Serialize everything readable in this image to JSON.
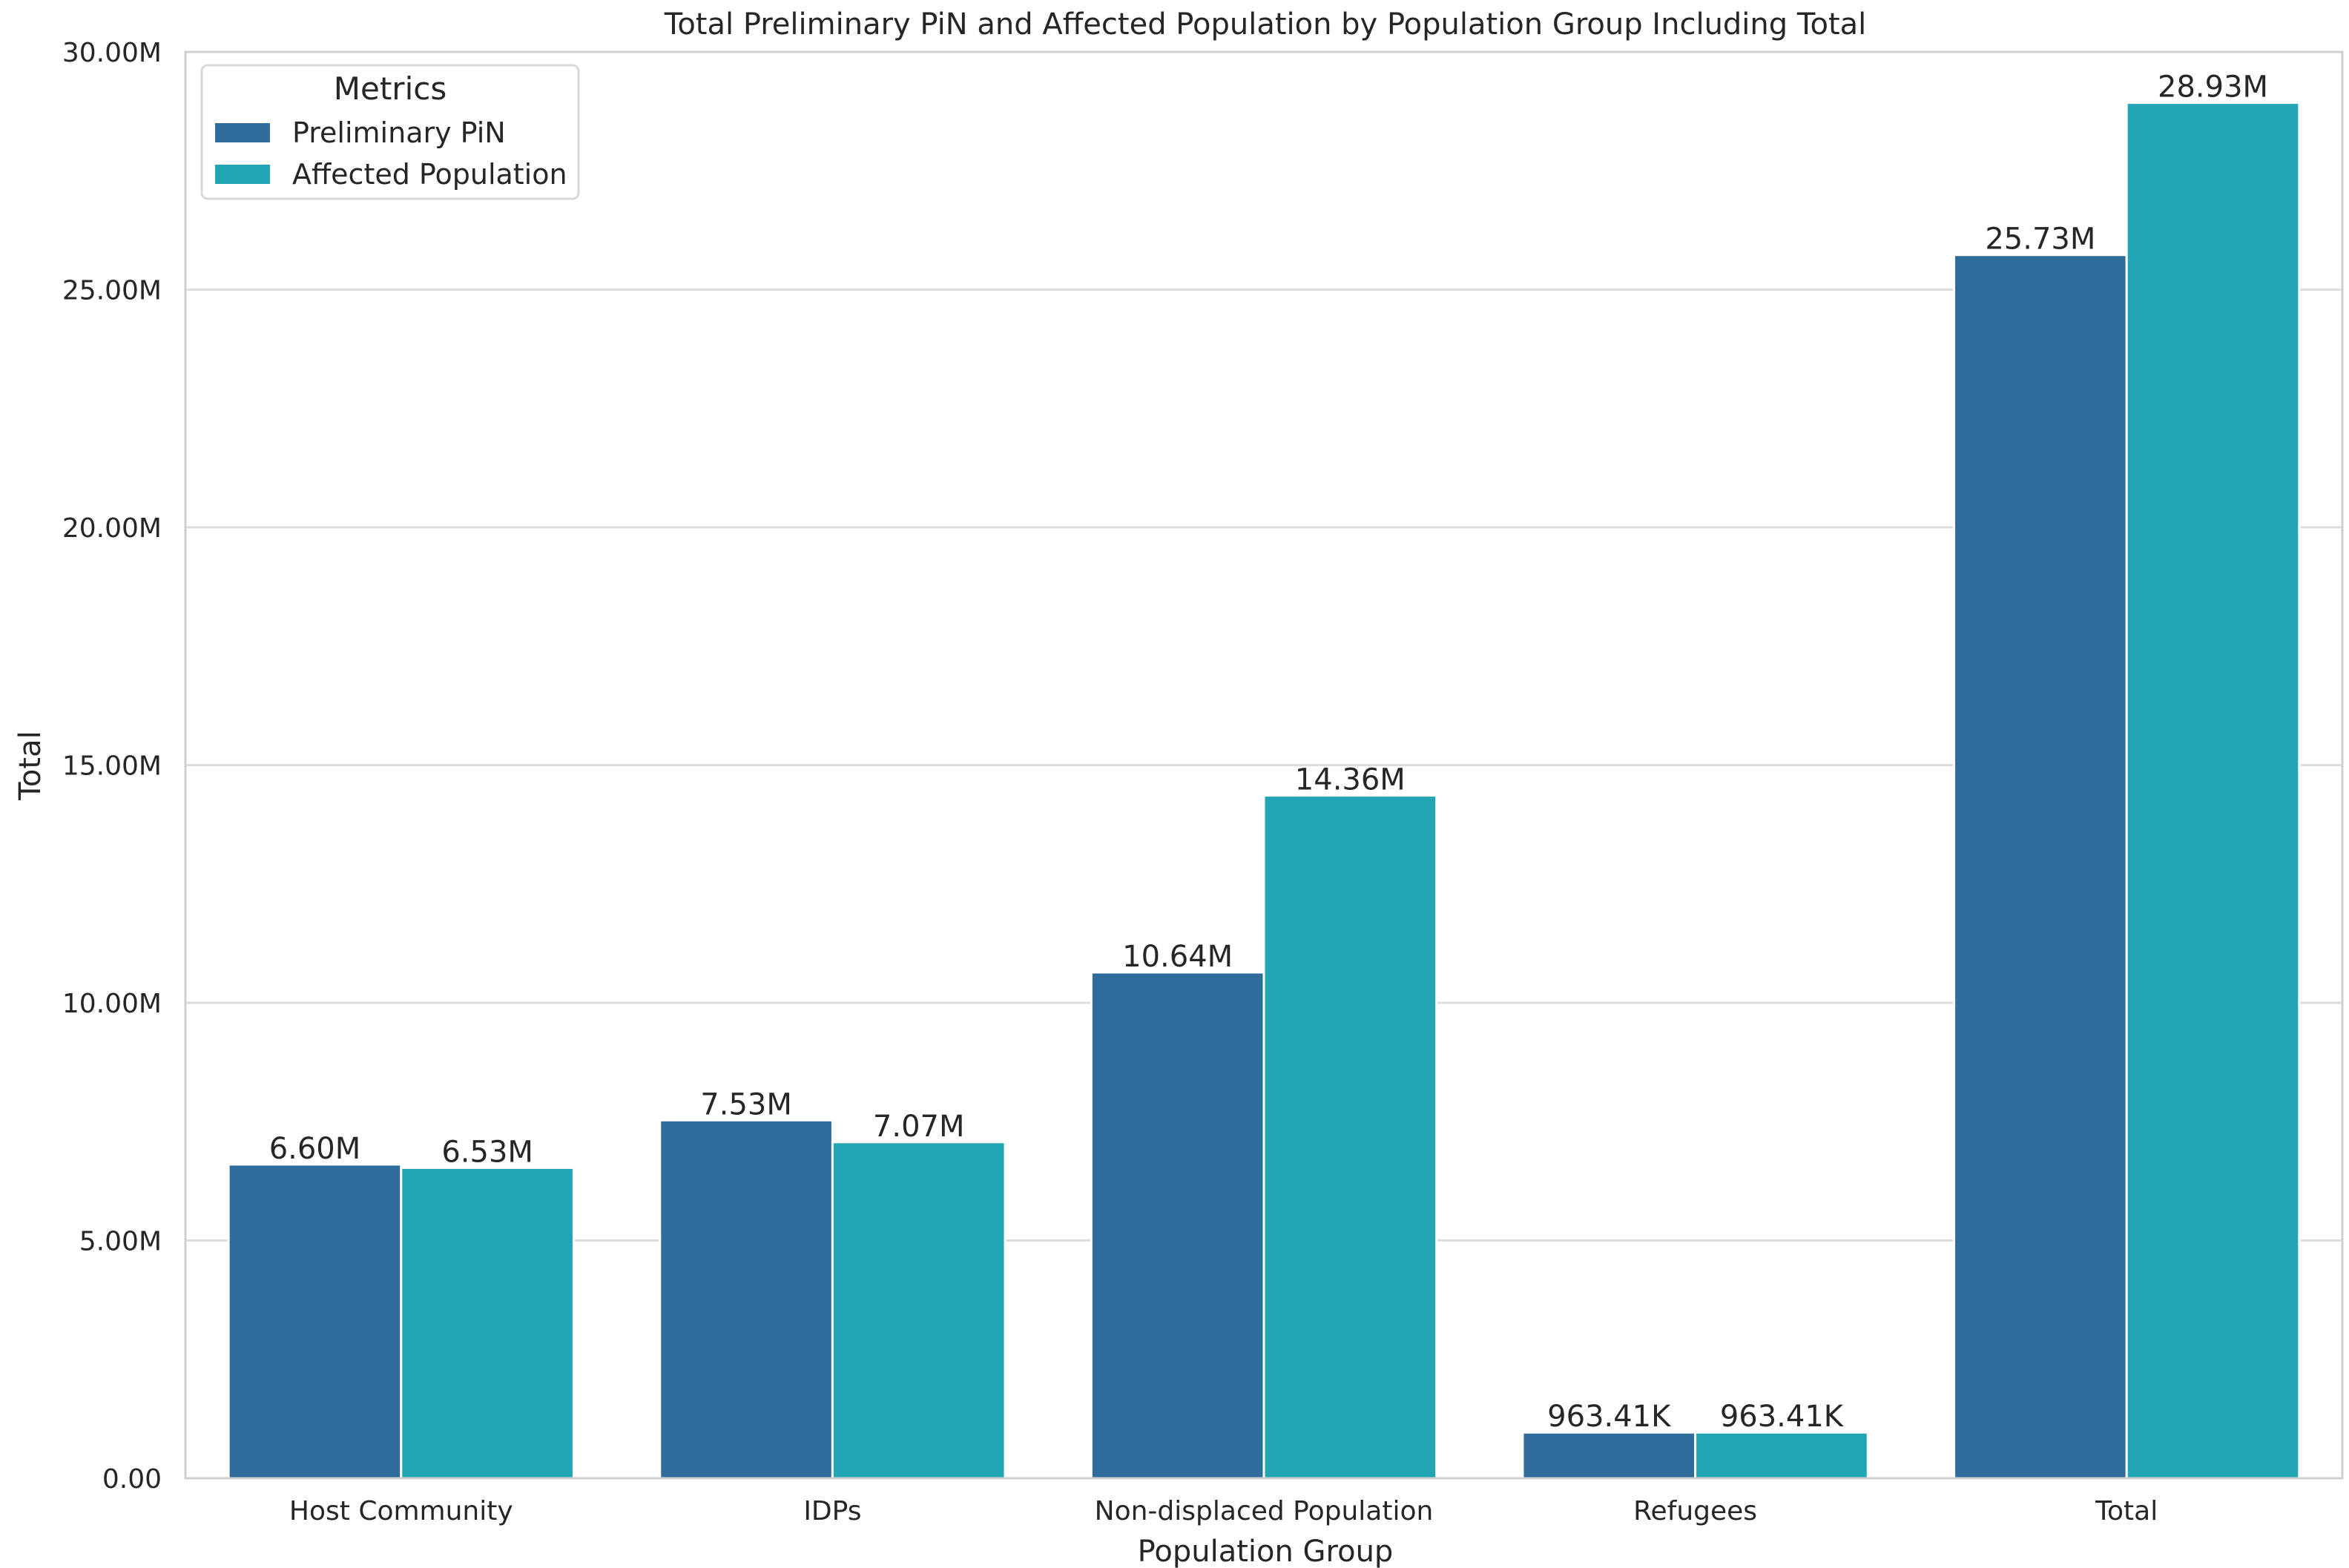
{
  "chart_data": {
    "type": "bar",
    "title": "Total Preliminary PiN and Affected Population by Population Group Including Total",
    "xlabel": "Population Group",
    "ylabel": "Total",
    "categories": [
      "Host Community",
      "IDPs",
      "Non-displaced Population",
      "Refugees",
      "Total"
    ],
    "series": [
      {
        "name": "Preliminary PiN",
        "color": "#2f6c9c",
        "values": [
          6600000,
          7530000,
          10640000,
          963410,
          25730000
        ],
        "labels": [
          "6.60M",
          "7.53M",
          "10.64M",
          "963.41K",
          "25.73M"
        ]
      },
      {
        "name": "Affected Population",
        "color": "#22a6b5",
        "values": [
          6530000,
          7070000,
          14360000,
          963410,
          28930000
        ],
        "labels": [
          "6.53M",
          "7.07M",
          "14.36M",
          "963.41K",
          "28.93M"
        ]
      }
    ],
    "ylim": [
      0,
      30000000
    ],
    "yticks": [
      0,
      5000000,
      10000000,
      15000000,
      20000000,
      25000000,
      30000000
    ],
    "ytick_labels": [
      "0.00",
      "5.00M",
      "10.00M",
      "15.00M",
      "20.00M",
      "25.00M",
      "30.00M"
    ],
    "grid": true,
    "legend": {
      "title": "Metrics",
      "position": "top-left"
    }
  }
}
